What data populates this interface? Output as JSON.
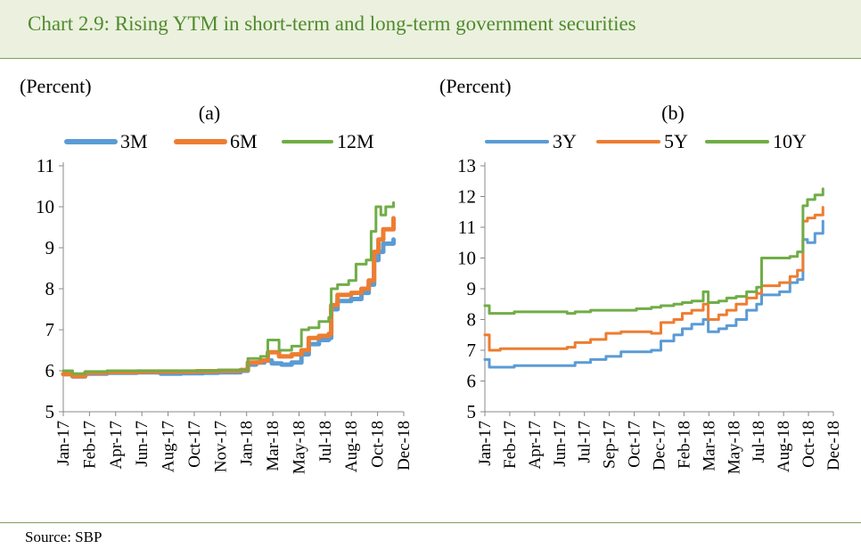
{
  "header": {
    "title": "Chart 2.9: Rising YTM in short-term and long-term government securities"
  },
  "footer": {
    "source": "Source:  SBP"
  },
  "colors": {
    "blue": "#5b9bd5",
    "orange": "#ed7d31",
    "green": "#70ad47",
    "title_green": "#4f8a2c"
  },
  "chart_data": [
    {
      "type": "line",
      "panel": "(a)",
      "unit_label": "(Percent)",
      "ylim": [
        5,
        11
      ],
      "yticks": [
        5,
        6,
        7,
        8,
        9,
        10,
        11
      ],
      "x_tick_labels": [
        "Jan-17",
        "Feb-17",
        "Apr-17",
        "Jun-17",
        "Aug-17",
        "Oct-17",
        "Nov-17",
        "Jan-18",
        "Mar-18",
        "May-18",
        "Jul-18",
        "Aug-18",
        "Oct-18",
        "Dec-18"
      ],
      "x_range": [
        "2017-01-01",
        "2018-12-01"
      ],
      "legend_position": "top",
      "series": [
        {
          "name": "3M",
          "color": "#5b9bd5",
          "width": 5,
          "points": [
            [
              "2017-01-01",
              5.92
            ],
            [
              "2017-01-20",
              5.86
            ],
            [
              "2017-02-15",
              5.93
            ],
            [
              "2017-04-01",
              5.95
            ],
            [
              "2017-06-01",
              5.96
            ],
            [
              "2017-07-20",
              5.93
            ],
            [
              "2017-09-01",
              5.94
            ],
            [
              "2017-10-15",
              5.95
            ],
            [
              "2017-11-15",
              5.96
            ],
            [
              "2017-12-31",
              6.0
            ],
            [
              "2018-01-15",
              6.15
            ],
            [
              "2018-02-01",
              6.2
            ],
            [
              "2018-02-18",
              6.25
            ],
            [
              "2018-03-05",
              6.18
            ],
            [
              "2018-03-25",
              6.15
            ],
            [
              "2018-04-15",
              6.2
            ],
            [
              "2018-05-05",
              6.4
            ],
            [
              "2018-05-20",
              6.65
            ],
            [
              "2018-06-10",
              6.75
            ],
            [
              "2018-06-30",
              6.8
            ],
            [
              "2018-07-05",
              7.5
            ],
            [
              "2018-07-18",
              7.7
            ],
            [
              "2018-08-15",
              7.75
            ],
            [
              "2018-09-05",
              7.9
            ],
            [
              "2018-09-20",
              8.1
            ],
            [
              "2018-10-01",
              8.7
            ],
            [
              "2018-10-10",
              8.9
            ],
            [
              "2018-10-20",
              9.1
            ],
            [
              "2018-11-10",
              9.2
            ]
          ]
        },
        {
          "name": "6M",
          "color": "#ed7d31",
          "width": 5,
          "points": [
            [
              "2017-01-01",
              5.92
            ],
            [
              "2017-01-20",
              5.87
            ],
            [
              "2017-02-15",
              5.95
            ],
            [
              "2017-04-01",
              5.97
            ],
            [
              "2017-06-01",
              5.98
            ],
            [
              "2017-08-01",
              5.98
            ],
            [
              "2017-10-01",
              5.99
            ],
            [
              "2017-11-15",
              6.0
            ],
            [
              "2017-12-31",
              6.02
            ],
            [
              "2018-01-15",
              6.2
            ],
            [
              "2018-02-10",
              6.25
            ],
            [
              "2018-02-25",
              6.45
            ],
            [
              "2018-03-20",
              6.35
            ],
            [
              "2018-04-15",
              6.4
            ],
            [
              "2018-05-05",
              6.5
            ],
            [
              "2018-05-20",
              6.8
            ],
            [
              "2018-06-10",
              6.85
            ],
            [
              "2018-06-30",
              6.9
            ],
            [
              "2018-07-05",
              7.6
            ],
            [
              "2018-07-18",
              7.85
            ],
            [
              "2018-08-15",
              7.9
            ],
            [
              "2018-09-05",
              8.0
            ],
            [
              "2018-09-20",
              8.2
            ],
            [
              "2018-10-01",
              8.9
            ],
            [
              "2018-10-10",
              9.2
            ],
            [
              "2018-10-20",
              9.45
            ],
            [
              "2018-11-10",
              9.72
            ]
          ]
        },
        {
          "name": "12M",
          "color": "#70ad47",
          "width": 3,
          "points": [
            [
              "2017-01-01",
              6.0
            ],
            [
              "2017-01-20",
              5.93
            ],
            [
              "2017-02-15",
              5.98
            ],
            [
              "2017-04-01",
              6.0
            ],
            [
              "2017-06-01",
              6.0
            ],
            [
              "2017-08-01",
              6.0
            ],
            [
              "2017-10-01",
              6.0
            ],
            [
              "2017-11-15",
              6.02
            ],
            [
              "2017-12-31",
              6.02
            ],
            [
              "2018-01-15",
              6.3
            ],
            [
              "2018-02-10",
              6.35
            ],
            [
              "2018-02-25",
              6.75
            ],
            [
              "2018-03-20",
              6.5
            ],
            [
              "2018-04-15",
              6.6
            ],
            [
              "2018-05-05",
              7.0
            ],
            [
              "2018-05-20",
              7.05
            ],
            [
              "2018-06-10",
              7.2
            ],
            [
              "2018-06-30",
              7.3
            ],
            [
              "2018-07-05",
              8.0
            ],
            [
              "2018-07-18",
              8.1
            ],
            [
              "2018-08-10",
              8.2
            ],
            [
              "2018-08-25",
              8.6
            ],
            [
              "2018-09-15",
              8.7
            ],
            [
              "2018-09-25",
              9.4
            ],
            [
              "2018-10-05",
              10.0
            ],
            [
              "2018-10-15",
              9.8
            ],
            [
              "2018-10-25",
              10.0
            ],
            [
              "2018-11-10",
              10.1
            ]
          ]
        }
      ]
    },
    {
      "type": "line",
      "panel": "(b)",
      "unit_label": "(Percent)",
      "ylim": [
        5,
        13
      ],
      "yticks": [
        5,
        6,
        7,
        8,
        9,
        10,
        11,
        12,
        13
      ],
      "x_tick_labels": [
        "Jan-17",
        "Feb-17",
        "Apr-17",
        "Jun-17",
        "Jul-17",
        "Sep-17",
        "Oct-17",
        "Dec-17",
        "Feb-18",
        "Mar-18",
        "May-18",
        "Jul-18",
        "Aug-18",
        "Oct-18",
        "Dec-18"
      ],
      "x_range": [
        "2017-01-01",
        "2018-12-01"
      ],
      "legend_position": "top",
      "series": [
        {
          "name": "3Y",
          "color": "#5b9bd5",
          "width": 3,
          "points": [
            [
              "2017-01-01",
              6.7
            ],
            [
              "2017-01-10",
              6.45
            ],
            [
              "2017-02-01",
              6.45
            ],
            [
              "2017-03-01",
              6.5
            ],
            [
              "2017-05-01",
              6.5
            ],
            [
              "2017-06-15",
              6.5
            ],
            [
              "2017-07-01",
              6.6
            ],
            [
              "2017-08-01",
              6.7
            ],
            [
              "2017-09-01",
              6.8
            ],
            [
              "2017-10-01",
              6.95
            ],
            [
              "2017-11-01",
              6.95
            ],
            [
              "2017-12-01",
              7.0
            ],
            [
              "2017-12-20",
              7.3
            ],
            [
              "2018-01-15",
              7.5
            ],
            [
              "2018-02-01",
              7.7
            ],
            [
              "2018-02-20",
              7.85
            ],
            [
              "2018-03-15",
              8.0
            ],
            [
              "2018-03-25",
              7.6
            ],
            [
              "2018-04-15",
              7.7
            ],
            [
              "2018-05-01",
              7.8
            ],
            [
              "2018-05-20",
              8.0
            ],
            [
              "2018-06-10",
              8.3
            ],
            [
              "2018-06-30",
              8.5
            ],
            [
              "2018-07-10",
              8.8
            ],
            [
              "2018-08-15",
              8.9
            ],
            [
              "2018-09-05",
              9.2
            ],
            [
              "2018-09-20",
              9.3
            ],
            [
              "2018-10-01",
              10.6
            ],
            [
              "2018-10-10",
              10.5
            ],
            [
              "2018-10-25",
              10.8
            ],
            [
              "2018-11-10",
              11.2
            ]
          ]
        },
        {
          "name": "5Y",
          "color": "#ed7d31",
          "width": 3,
          "points": [
            [
              "2017-01-01",
              7.5
            ],
            [
              "2017-01-10",
              7.0
            ],
            [
              "2017-02-01",
              7.05
            ],
            [
              "2017-03-01",
              7.05
            ],
            [
              "2017-05-01",
              7.05
            ],
            [
              "2017-06-15",
              7.1
            ],
            [
              "2017-07-01",
              7.25
            ],
            [
              "2017-08-01",
              7.35
            ],
            [
              "2017-09-01",
              7.55
            ],
            [
              "2017-10-01",
              7.6
            ],
            [
              "2017-11-01",
              7.6
            ],
            [
              "2017-12-01",
              7.55
            ],
            [
              "2017-12-20",
              7.9
            ],
            [
              "2018-01-15",
              8.0
            ],
            [
              "2018-02-01",
              8.2
            ],
            [
              "2018-02-20",
              8.3
            ],
            [
              "2018-03-15",
              8.5
            ],
            [
              "2018-03-25",
              8.0
            ],
            [
              "2018-04-15",
              8.15
            ],
            [
              "2018-05-01",
              8.3
            ],
            [
              "2018-05-20",
              8.5
            ],
            [
              "2018-06-10",
              8.7
            ],
            [
              "2018-06-30",
              8.85
            ],
            [
              "2018-07-10",
              9.1
            ],
            [
              "2018-08-15",
              9.2
            ],
            [
              "2018-09-05",
              9.4
            ],
            [
              "2018-09-20",
              9.6
            ],
            [
              "2018-10-01",
              11.2
            ],
            [
              "2018-10-10",
              11.3
            ],
            [
              "2018-10-25",
              11.4
            ],
            [
              "2018-11-10",
              11.65
            ]
          ]
        },
        {
          "name": "10Y",
          "color": "#70ad47",
          "width": 3,
          "points": [
            [
              "2017-01-01",
              8.45
            ],
            [
              "2017-01-10",
              8.2
            ],
            [
              "2017-02-01",
              8.2
            ],
            [
              "2017-03-01",
              8.25
            ],
            [
              "2017-05-01",
              8.25
            ],
            [
              "2017-06-15",
              8.2
            ],
            [
              "2017-07-01",
              8.25
            ],
            [
              "2017-08-01",
              8.3
            ],
            [
              "2017-09-01",
              8.3
            ],
            [
              "2017-10-01",
              8.3
            ],
            [
              "2017-11-01",
              8.35
            ],
            [
              "2017-12-01",
              8.4
            ],
            [
              "2017-12-20",
              8.45
            ],
            [
              "2018-01-15",
              8.5
            ],
            [
              "2018-02-01",
              8.55
            ],
            [
              "2018-02-20",
              8.6
            ],
            [
              "2018-03-15",
              8.9
            ],
            [
              "2018-03-25",
              8.55
            ],
            [
              "2018-04-15",
              8.6
            ],
            [
              "2018-05-01",
              8.7
            ],
            [
              "2018-05-20",
              8.75
            ],
            [
              "2018-06-10",
              8.9
            ],
            [
              "2018-06-30",
              9.05
            ],
            [
              "2018-07-10",
              10.0
            ],
            [
              "2018-08-15",
              10.0
            ],
            [
              "2018-09-05",
              10.05
            ],
            [
              "2018-09-20",
              10.2
            ],
            [
              "2018-10-01",
              11.7
            ],
            [
              "2018-10-10",
              11.9
            ],
            [
              "2018-10-25",
              12.05
            ],
            [
              "2018-11-10",
              12.25
            ]
          ]
        }
      ]
    }
  ]
}
